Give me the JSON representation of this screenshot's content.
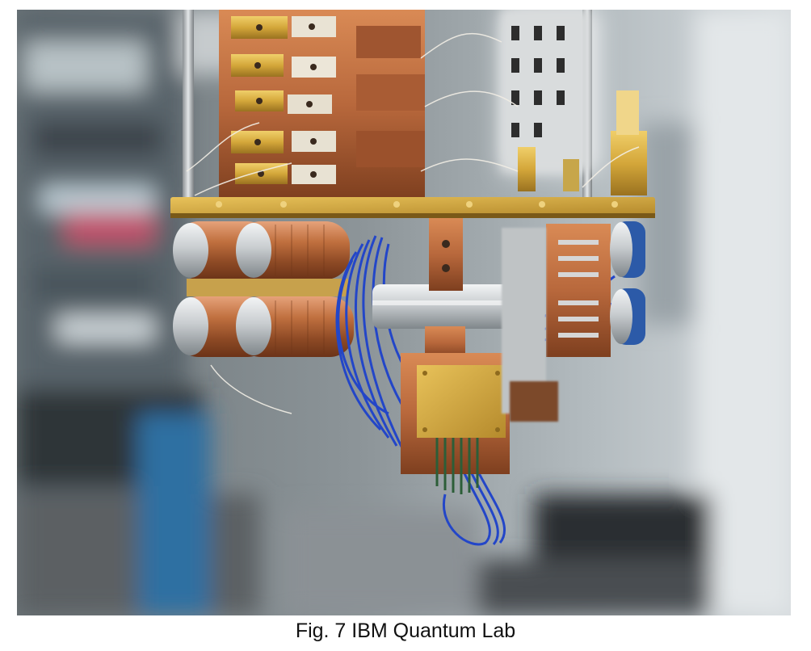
{
  "figure": {
    "subject": "quantum-computer-dilution-refrigerator-hardware"
  },
  "caption": {
    "text": "Fig. 7 IBM Quantum Lab"
  },
  "colors": {
    "copper": "#b8683c",
    "gold": "#d4a73a",
    "cable_blue": "#2346c8",
    "silver": "#cfd3d6",
    "background_blur": "#7d8487"
  }
}
